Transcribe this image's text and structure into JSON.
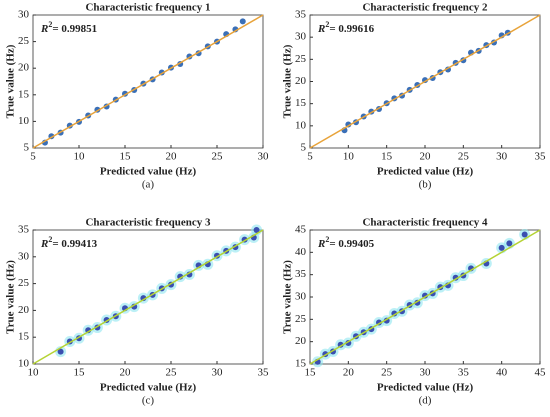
{
  "chart_data": [
    {
      "type": "scatter",
      "title": "Characteristic frequency 1",
      "xlabel": "Predicted value (Hz)",
      "ylabel": "True value (Hz)",
      "caption": "(a)",
      "annotation": {
        "symbol": "R",
        "sup": "2",
        "text": "= 0.99851"
      },
      "color": "#3a6fb7",
      "line_color": "#e8a33a",
      "x": [
        6.3,
        7,
        8,
        9,
        10,
        11,
        12,
        13,
        14,
        15,
        16,
        17,
        18,
        19,
        20,
        21,
        22,
        23,
        24,
        25,
        26,
        27,
        27.8
      ],
      "y": [
        6,
        7.2,
        7.9,
        9.2,
        9.9,
        11.1,
        12.2,
        12.8,
        14.1,
        15.2,
        15.9,
        17.1,
        17.9,
        19.2,
        20.1,
        20.8,
        22.2,
        22.8,
        24.1,
        25,
        26.4,
        27.3,
        28.8
      ],
      "xlim": [
        5,
        30
      ],
      "ylim": [
        5,
        30
      ],
      "xticks": [
        5,
        10,
        15,
        20,
        25,
        30
      ],
      "yticks": [
        5,
        10,
        15,
        20,
        25,
        30
      ]
    },
    {
      "type": "scatter",
      "title": "Characteristic frequency 2",
      "xlabel": "Predicted value (Hz)",
      "ylabel": "True value (Hz)",
      "caption": "(b)",
      "annotation": {
        "symbol": "R",
        "sup": "2",
        "text": "= 0.99616"
      },
      "color": "#3a6fb7",
      "line_color": "#e8a33a",
      "x": [
        9.5,
        10,
        11,
        12,
        13,
        14,
        15,
        16,
        17,
        18,
        19,
        20,
        21,
        22,
        23,
        24,
        25,
        26,
        27,
        28,
        29,
        30,
        30.8
      ],
      "y": [
        9,
        10.3,
        10.8,
        12.1,
        13.2,
        13.8,
        15.1,
        16.2,
        16.8,
        18.1,
        19.2,
        20.3,
        20.8,
        22.1,
        22.7,
        24.2,
        24.8,
        26.5,
        26.9,
        28.2,
        28.8,
        30.4,
        31
      ],
      "xlim": [
        5,
        35
      ],
      "ylim": [
        5,
        35
      ],
      "xticks": [
        5,
        10,
        15,
        20,
        25,
        30,
        35
      ],
      "yticks": [
        5,
        10,
        15,
        20,
        25,
        30,
        35
      ]
    },
    {
      "type": "scatter",
      "title": "Characteristic frequency 3",
      "xlabel": "Predicted value (Hz)",
      "ylabel": "True value (Hz)",
      "caption": "(c)",
      "annotation": {
        "symbol": "R",
        "sup": "2",
        "text": "= 0.99413"
      },
      "color": "#3a4fb0",
      "line_color": "#b5d334",
      "x": [
        13,
        14,
        15,
        16,
        17,
        18,
        19,
        20,
        21,
        22,
        23,
        24,
        25,
        26,
        27,
        28,
        29,
        30,
        31,
        32,
        33,
        34,
        34.3
      ],
      "y": [
        12.3,
        14.2,
        14.8,
        16.3,
        16.8,
        18.2,
        18.9,
        20.4,
        20.7,
        22.3,
        22.9,
        24.1,
        24.8,
        26.3,
        26.7,
        28.4,
        28.6,
        30.2,
        31.1,
        31.8,
        33.2,
        33.6,
        35
      ],
      "xlim": [
        10,
        35
      ],
      "ylim": [
        10,
        35
      ],
      "xticks": [
        10,
        15,
        20,
        25,
        30,
        35
      ],
      "yticks": [
        10,
        15,
        20,
        25,
        30,
        35
      ]
    },
    {
      "type": "scatter",
      "title": "Characteristic frequency 4",
      "xlabel": "Predicted value (Hz)",
      "ylabel": "True value (Hz)",
      "caption": "(d)",
      "annotation": {
        "symbol": "R",
        "sup": "2",
        "text": "= 0.99405"
      },
      "color": "#3a4fb0",
      "line_color": "#b5d334",
      "x": [
        16,
        17,
        18,
        19,
        20,
        21,
        22,
        23,
        24,
        25,
        26,
        27,
        28,
        29,
        30,
        31,
        32,
        33,
        34,
        35,
        36,
        38,
        40,
        41,
        43
      ],
      "y": [
        15.5,
        17.2,
        17.8,
        19.3,
        19.7,
        21.2,
        22.1,
        22.8,
        24.3,
        24.7,
        26.3,
        26.8,
        28.2,
        28.7,
        30.3,
        30.8,
        32.2,
        32.6,
        34.3,
        34.8,
        36.4,
        37.5,
        41,
        42,
        44
      ],
      "xlim": [
        15,
        45
      ],
      "ylim": [
        15,
        45
      ],
      "xticks": [
        15,
        20,
        25,
        30,
        35,
        40,
        45
      ],
      "yticks": [
        15,
        20,
        25,
        30,
        35,
        40,
        45
      ]
    }
  ]
}
